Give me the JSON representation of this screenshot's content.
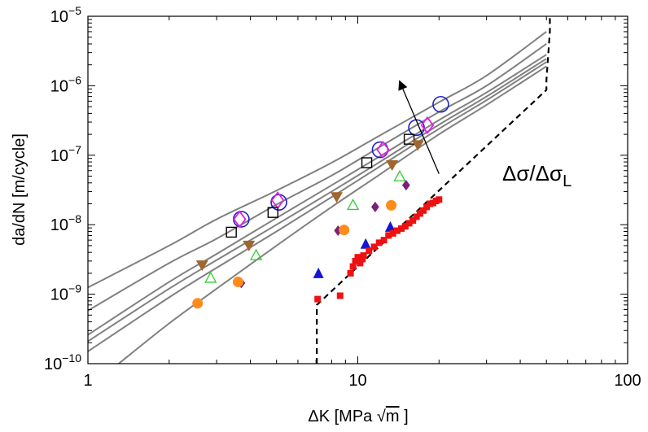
{
  "chart_data": {
    "type": "scatter",
    "title": "",
    "xlabel": "ΔK [MPa √m ]",
    "xlabel_parts": {
      "main": "ΔK [MPa ",
      "sqrt_symbol": "√",
      "sqrt_arg": "m",
      "close": " ]"
    },
    "ylabel": "da/dN [m/cycle]",
    "xscale": "log",
    "yscale": "log",
    "xlim": [
      1,
      100
    ],
    "ylim": [
      1e-10,
      1e-05
    ],
    "x_ticks": [
      {
        "value": 1,
        "label": "1"
      },
      {
        "value": 10,
        "label": "10"
      },
      {
        "value": 100,
        "label": "100"
      }
    ],
    "y_ticks": [
      {
        "value": 1e-10,
        "base": "10",
        "exp": "−10"
      },
      {
        "value": 1e-09,
        "base": "10",
        "exp": "−9"
      },
      {
        "value": 1e-08,
        "base": "10",
        "exp": "−8"
      },
      {
        "value": 1e-07,
        "base": "10",
        "exp": "−7"
      },
      {
        "value": 1e-06,
        "base": "10",
        "exp": "−6"
      },
      {
        "value": 1e-05,
        "base": "10",
        "exp": "−5"
      }
    ],
    "annotation": {
      "text": "Δσ/Δσ",
      "subscript": "L",
      "arrow_from": [
        20,
        5.4e-08
      ],
      "arrow_to": [
        14.3,
        1.15e-06
      ]
    },
    "model_curves": [
      {
        "x": [
          1,
          2,
          3,
          5,
          8,
          12,
          20,
          30,
          50
        ],
        "y": [
          1.25e-09,
          5e-09,
          1.2e-08,
          3.1e-08,
          7.8e-08,
          1.9e-07,
          5.8e-07,
          1.4e-06,
          6e-06
        ]
      },
      {
        "x": [
          1,
          2,
          3,
          5,
          8,
          12,
          20,
          30,
          50
        ],
        "y": [
          5.8e-10,
          2.8e-09,
          6.3e-09,
          1.95e-08,
          5.1e-08,
          1.3e-07,
          4.2e-07,
          1e-06,
          4e-06
        ]
      },
      {
        "x": [
          1,
          2,
          3,
          5,
          8,
          12,
          20,
          30,
          50
        ],
        "y": [
          2.6e-10,
          1.5e-09,
          3.8e-09,
          1.25e-08,
          3.7e-08,
          9.5e-08,
          3.2e-07,
          8e-07,
          2.8e-06
        ]
      },
      {
        "x": [
          1,
          2,
          3,
          5,
          8,
          12,
          20,
          30,
          50
        ],
        "y": [
          2.1e-10,
          1.2e-09,
          3.1e-09,
          1e-08,
          3e-08,
          7.9e-08,
          2.75e-07,
          7e-07,
          2.45e-06
        ]
      },
      {
        "x": [
          1,
          2,
          3,
          5,
          8,
          12,
          20,
          30,
          50
        ],
        "y": [
          1.5e-10,
          9e-10,
          2.4e-09,
          8e-09,
          2.5e-08,
          6.8e-08,
          2.4e-07,
          6.2e-07,
          2.2e-06
        ]
      },
      {
        "x": [
          1.3,
          2,
          3,
          5,
          8,
          12,
          20,
          30,
          50
        ],
        "y": [
          1e-10,
          3.8e-10,
          1.2e-09,
          5e-09,
          1.8e-08,
          5.2e-08,
          2e-07,
          5.3e-07,
          1.9e-06
        ]
      }
    ],
    "threshold_boundary": {
      "x": [
        7.05,
        7.05,
        50,
        50,
        51.5,
        51.5
      ],
      "y": [
        1e-10,
        7e-10,
        8.7e-07,
        1.2e-06,
        6e-06,
        1e-05
      ]
    },
    "series": [
      {
        "marker": "circle-open",
        "color": "#1f1fcc",
        "x": [
          3.7,
          5.1,
          12.1,
          16.5,
          20.3
        ],
        "y": [
          1.2e-08,
          2.1e-08,
          1.2e-07,
          2.5e-07,
          5.4e-07
        ]
      },
      {
        "marker": "diamond-open",
        "color": "#e020e0",
        "x": [
          3.65,
          5.05,
          12.4,
          18.1
        ],
        "y": [
          1.2e-08,
          2.25e-08,
          1.2e-07,
          2.7e-07
        ]
      },
      {
        "marker": "square-open",
        "color": "#000000",
        "x": [
          3.4,
          4.85,
          10.8,
          15.5
        ],
        "y": [
          7.8e-09,
          1.5e-08,
          7.8e-08,
          1.7e-07
        ]
      },
      {
        "marker": "triangle-down-filled",
        "color": "#a0662e",
        "x": [
          2.65,
          3.95,
          8.35,
          13.4,
          16.7
        ],
        "y": [
          2.6e-09,
          5e-09,
          2.5e-08,
          7.2e-08,
          1.4e-07
        ]
      },
      {
        "marker": "triangle-up-open",
        "color": "#33cc33",
        "x": [
          2.85,
          4.2,
          9.6,
          14.3
        ],
        "y": [
          1.7e-09,
          3.6e-09,
          1.9e-08,
          4.9e-08
        ]
      },
      {
        "marker": "diamond-filled",
        "color": "#7a1f7a",
        "x": [
          3.7,
          8.45,
          11.6,
          15.1
        ],
        "y": [
          1.45e-09,
          8.2e-09,
          1.8e-08,
          3.7e-08
        ]
      },
      {
        "marker": "circle-filled",
        "color": "#ff8c1a",
        "x": [
          2.55,
          3.6,
          8.9,
          13.3
        ],
        "y": [
          7.4e-10,
          1.5e-09,
          8.4e-09,
          1.9e-08
        ]
      },
      {
        "marker": "triangle-up-filled",
        "color": "#1515d6",
        "x": [
          7.15,
          10.7,
          13.2
        ],
        "y": [
          2e-09,
          5.3e-09,
          9.3e-09
        ]
      },
      {
        "marker": "square-filled",
        "color": "#ee1111",
        "x": [
          7.1,
          8.6,
          9.4,
          9.6,
          9.8,
          10.0,
          10.2,
          10.4,
          10.5,
          11.0,
          11.5,
          12.0,
          12.5,
          13.0,
          13.5,
          14.0,
          14.5,
          15.0,
          15.5,
          16.0,
          16.5,
          17.0,
          17.5,
          18.0,
          18.5,
          19.0,
          19.5,
          20.0
        ],
        "y": [
          8.5e-10,
          9.5e-10,
          2e-09,
          2.5e-09,
          3e-09,
          3.4e-09,
          2.8e-09,
          3.2e-09,
          3.6e-09,
          4.2e-09,
          4.8e-09,
          5.5e-09,
          6e-09,
          7e-09,
          7.5e-09,
          8.2e-09,
          8.8e-09,
          9.5e-09,
          1.05e-08,
          1.15e-08,
          1.3e-08,
          1.45e-08,
          1.6e-08,
          1.8e-08,
          2e-08,
          2.05e-08,
          2.2e-08,
          2.3e-08
        ]
      }
    ],
    "colors": {
      "curve": "#808080",
      "boundary": "#000000",
      "axis": "#000000"
    }
  }
}
